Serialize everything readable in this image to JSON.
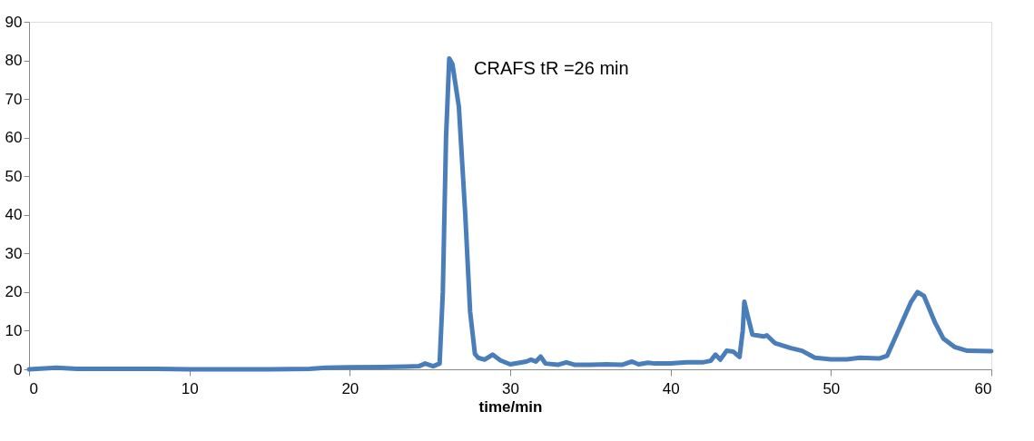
{
  "chart_data": {
    "type": "line",
    "xlabel": "time/min",
    "x": [
      0,
      1.7,
      3,
      5.5,
      8,
      10,
      15,
      17.5,
      18.5,
      20,
      22,
      23.5,
      24.3,
      24.7,
      25.2,
      25.6,
      25.8,
      26,
      26.2,
      26.4,
      26.8,
      27.2,
      27.5,
      27.8,
      28,
      28.4,
      28.9,
      29.4,
      30,
      31,
      31.3,
      31.6,
      31.9,
      32.2,
      33,
      33.5,
      34,
      35,
      36,
      37,
      37.6,
      38,
      38.6,
      39,
      40,
      41,
      42,
      42.5,
      42.8,
      43.1,
      43.5,
      43.9,
      44.3,
      44.5,
      44.6,
      44.8,
      45.1,
      45.8,
      46,
      46.5,
      47.5,
      48.2,
      49,
      50,
      51,
      51.8,
      53,
      53.5,
      54.2,
      55,
      55.4,
      55.8,
      56.5,
      57,
      57.7,
      58.5,
      60
    ],
    "series": [
      {
        "color": "#4a7ebb",
        "values": [
          0,
          0.4,
          0.1,
          0.1,
          0.1,
          0,
          0,
          0.1,
          0.4,
          0.5,
          0.6,
          0.7,
          0.8,
          1.5,
          0.8,
          1.5,
          20,
          60,
          80.5,
          79,
          68,
          40,
          15,
          4,
          3,
          2.5,
          3.8,
          2.3,
          1.3,
          2,
          2.5,
          2,
          3.3,
          1.5,
          1.2,
          1.8,
          1.2,
          1.2,
          1.3,
          1.2,
          2,
          1.3,
          1.7,
          1.5,
          1.5,
          1.8,
          1.8,
          2.2,
          3.8,
          2.5,
          4.8,
          4.6,
          3.2,
          10,
          17.5,
          14,
          9,
          8.5,
          8.8,
          6.8,
          5.5,
          4.8,
          3,
          2.6,
          2.6,
          3,
          2.8,
          3.5,
          10,
          17.5,
          20,
          19,
          12,
          8,
          5.8,
          4.8,
          4.7
        ]
      }
    ],
    "xlim": [
      0,
      60
    ],
    "xticks": [
      0,
      10,
      20,
      30,
      40,
      50,
      60
    ],
    "ylim": [
      0,
      90
    ],
    "yticks": [
      0,
      10,
      20,
      30,
      40,
      50,
      60,
      70,
      80,
      90
    ],
    "grid": false,
    "legend": false,
    "marker": "none",
    "line_style": "solid",
    "annotations": [
      "CRAFS  tR =26 min"
    ]
  }
}
